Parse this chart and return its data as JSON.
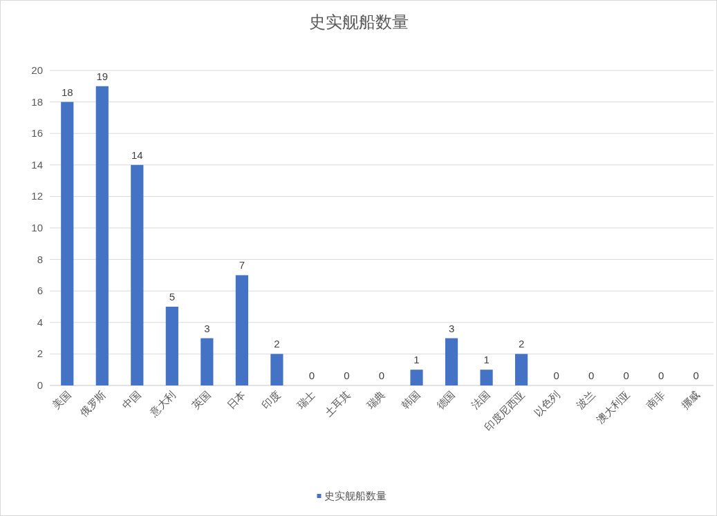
{
  "chart_data": {
    "type": "bar",
    "title": "史实舰船数量",
    "categories": [
      "美国",
      "俄罗斯",
      "中国",
      "意大利",
      "英国",
      "日本",
      "印度",
      "瑞士",
      "土耳其",
      "瑞典",
      "韩国",
      "德国",
      "法国",
      "印度尼西亚",
      "以色列",
      "波兰",
      "澳大利亚",
      "南非",
      "挪威"
    ],
    "series": [
      {
        "name": "史实舰船数量",
        "color": "#4472c4",
        "values": [
          18,
          19,
          14,
          5,
          3,
          7,
          2,
          0,
          0,
          0,
          1,
          3,
          1,
          2,
          0,
          0,
          0,
          0,
          0
        ]
      }
    ],
    "ylim": [
      0,
      20
    ],
    "yticks": [
      0,
      2,
      4,
      6,
      8,
      10,
      12,
      14,
      16,
      18,
      20
    ],
    "grid": "y",
    "legend": "bottom",
    "data_labels": true
  }
}
